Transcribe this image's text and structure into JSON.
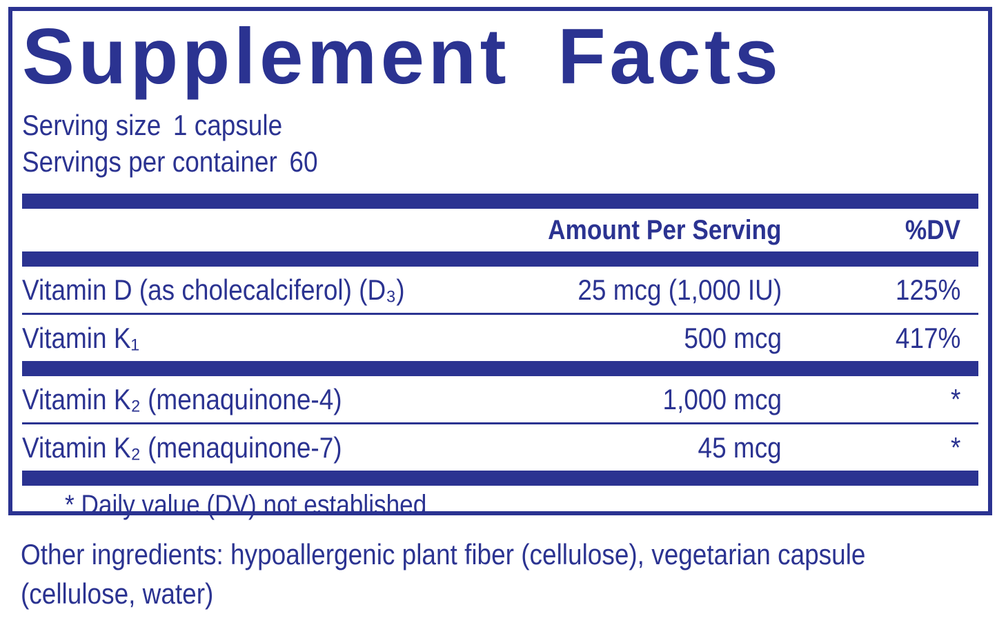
{
  "colors": {
    "navy": "#2B3391",
    "background": "#FFFFFF"
  },
  "panel": {
    "title": "Supplement Facts",
    "serving_size_label": "Serving size",
    "serving_size_value": "1 capsule",
    "servings_per_container_label": "Servings per container",
    "servings_per_container_value": "60",
    "header": {
      "amount": "Amount Per Serving",
      "dv": "%DV"
    },
    "rows": [
      {
        "name": "Vitamin D (as cholecalciferol) (D₃)",
        "amount": "25 mcg (1,000 IU)",
        "dv": "125%"
      },
      {
        "name": "Vitamin K₁",
        "amount": "500 mcg",
        "dv": "417%"
      },
      {
        "name": "Vitamin K₂ (menaquinone-4)",
        "amount": "1,000 mcg",
        "dv": "*"
      },
      {
        "name": "Vitamin K₂ (menaquinone-7)",
        "amount": "45 mcg",
        "dv": "*"
      }
    ],
    "footnote": "* Daily value (DV) not established"
  },
  "other_ingredients": {
    "line1": "Other ingredients: hypoallergenic plant fiber (cellulose), vegetarian capsule",
    "line2": "(cellulose, water)"
  }
}
